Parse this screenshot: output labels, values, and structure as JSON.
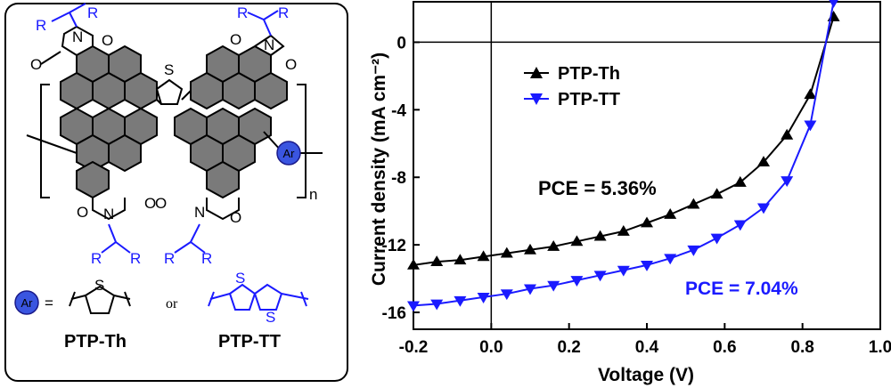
{
  "structure": {
    "r_label": "R",
    "n_label": "N",
    "o_label": "O",
    "s_label": "S",
    "subscript_n": "n",
    "ar_label": "Ar",
    "equals": "=",
    "or_text": "or",
    "names": [
      "PTP-Th",
      "PTP-TT"
    ],
    "colors": {
      "black_unit": "#000000",
      "blue_unit": "#1a1aff",
      "ar_ball": "#3a55e0"
    }
  },
  "chart_data": {
    "type": "line",
    "xlabel": "Voltage (V)",
    "ylabel": "Current density (mA cm⁻²)",
    "xlim": [
      -0.2,
      1.0
    ],
    "ylim": [
      -17,
      2.5
    ],
    "x_ticks": [
      "-0.2",
      "0.0",
      "0.2",
      "0.4",
      "0.6",
      "0.8",
      "1.0"
    ],
    "y_ticks": [
      "0",
      "-4",
      "-8",
      "-12",
      "-16"
    ],
    "grid": false,
    "legend_placement": "top-left",
    "series": [
      {
        "name": "PTP-Th",
        "color": "#000000",
        "marker": "triangle-up",
        "x": [
          -0.2,
          -0.14,
          -0.08,
          -0.02,
          0.04,
          0.1,
          0.16,
          0.22,
          0.28,
          0.34,
          0.4,
          0.46,
          0.52,
          0.58,
          0.64,
          0.7,
          0.76,
          0.82,
          0.88
        ],
        "y": [
          -13.2,
          -13.0,
          -12.9,
          -12.7,
          -12.5,
          -12.3,
          -12.1,
          -11.8,
          -11.5,
          -11.2,
          -10.7,
          -10.2,
          -9.6,
          -9.0,
          -8.3,
          -7.1,
          -5.5,
          -3.1,
          1.5
        ]
      },
      {
        "name": "PTP-TT",
        "color": "#1a1aff",
        "marker": "triangle-down",
        "x": [
          -0.2,
          -0.14,
          -0.08,
          -0.02,
          0.04,
          0.1,
          0.16,
          0.22,
          0.28,
          0.34,
          0.4,
          0.46,
          0.52,
          0.58,
          0.64,
          0.7,
          0.76,
          0.82,
          0.88
        ],
        "y": [
          -15.6,
          -15.5,
          -15.3,
          -15.1,
          -14.9,
          -14.6,
          -14.4,
          -14.1,
          -13.8,
          -13.5,
          -13.2,
          -12.8,
          -12.3,
          -11.6,
          -10.8,
          -9.8,
          -8.2,
          -4.9,
          2.4
        ]
      }
    ],
    "annotations": [
      {
        "text": "PCE = 5.36%",
        "color": "#000000"
      },
      {
        "text": "PCE = 7.04%",
        "color": "#1a1aff"
      }
    ]
  }
}
